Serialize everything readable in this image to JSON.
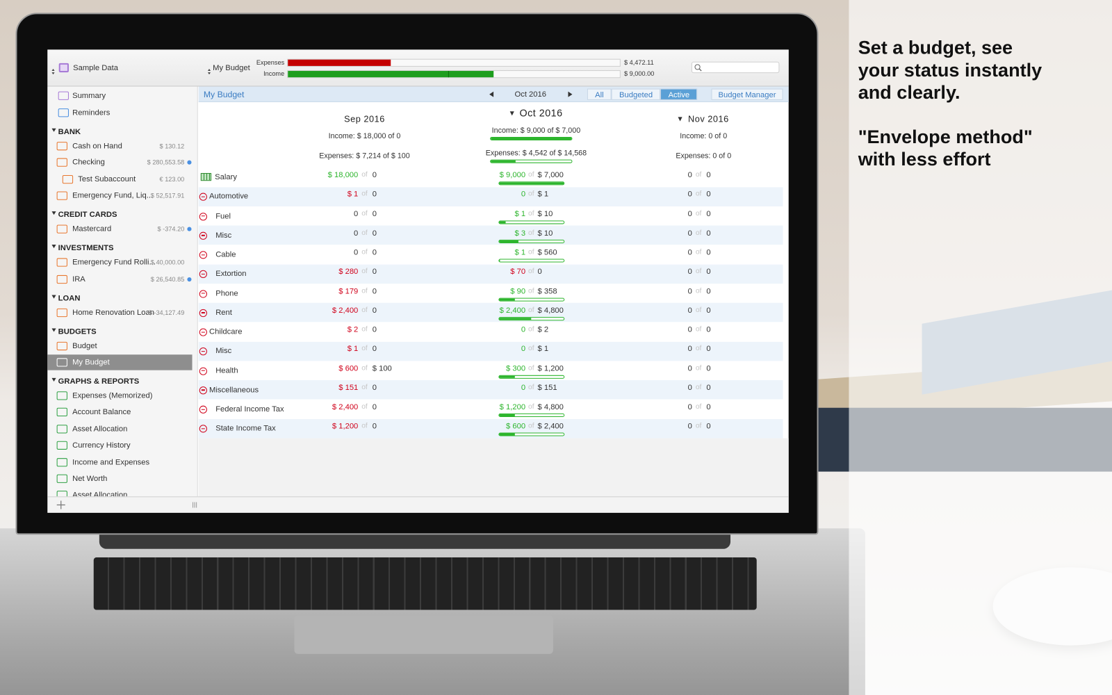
{
  "marketing": {
    "headline": [
      "Set a budget, see",
      "your status instantly",
      "and clearly."
    ],
    "subhead": [
      "\"Envelope method\"",
      "with less effort"
    ]
  },
  "toolbar": {
    "file": "Sample Data",
    "budget_selector": "My Budget",
    "expenses_label": "Expenses",
    "expenses_amount": "$ 4,472.11",
    "expenses_bar": 0.31,
    "income_label": "Income",
    "income_amount": "$ 9,000.00",
    "income_bar": 0.62
  },
  "sidebar": {
    "top": [
      "Summary",
      "Reminders"
    ],
    "sections": [
      {
        "title": "BANK",
        "items": [
          {
            "name": "Cash on Hand",
            "balance": "$ 130.12"
          },
          {
            "name": "Checking",
            "balance": "$ 280,553.58",
            "dot": true
          },
          {
            "name": "Test Subaccount",
            "balance": "€ 123.00",
            "indent": true
          },
          {
            "name": "Emergency Fund, Liq...",
            "balance": "$ 52,517.91"
          }
        ]
      },
      {
        "title": "CREDIT CARDS",
        "items": [
          {
            "name": "Mastercard",
            "balance": "$ -374.20",
            "dot": true
          }
        ]
      },
      {
        "title": "INVESTMENTS",
        "items": [
          {
            "name": "Emergency Fund Rolli...",
            "balance": "$ 40,000.00"
          },
          {
            "name": "IRA",
            "balance": "$ 26,540.85",
            "dot": true
          }
        ]
      },
      {
        "title": "LOAN",
        "items": [
          {
            "name": "Home Renovation Loan",
            "balance": "$ -34,127.49"
          }
        ]
      },
      {
        "title": "BUDGETS",
        "items": [
          {
            "name": "Budget"
          },
          {
            "name": "My Budget",
            "selected": true
          }
        ]
      },
      {
        "title": "GRAPHS & REPORTS",
        "items": [
          {
            "name": "Expenses (Memorized)"
          },
          {
            "name": "Account Balance"
          },
          {
            "name": "Asset Allocation"
          },
          {
            "name": "Currency History"
          },
          {
            "name": "Income and Expenses"
          },
          {
            "name": "Net Worth"
          },
          {
            "name": "Asset Allocation"
          }
        ]
      }
    ]
  },
  "budget": {
    "title": "My Budget",
    "period": "Oct 2016",
    "filters": [
      {
        "label": "All"
      },
      {
        "label": "Budgeted"
      },
      {
        "label": "Active",
        "selected": true
      }
    ],
    "manager": "Budget Manager",
    "of_label": "of",
    "months": [
      {
        "name": "Sep 2016",
        "income": "Income: $ 18,000 of 0",
        "expenses": "Expenses: $ 7,214 of $ 100"
      },
      {
        "name": "Oct 2016",
        "income": "Income: $ 9,000 of $ 7,000",
        "expenses": "Expenses: $ 4,542 of $ 14,568",
        "selected": true,
        "disclosure": true,
        "income_progress": 1.0,
        "expenses_progress": 0.31
      },
      {
        "name": "Nov 2016",
        "income": "Income: 0 of 0",
        "expenses": "Expenses: 0 of 0",
        "disclosure": true
      }
    ],
    "rows": [
      {
        "category": "Salary",
        "income": true,
        "cells": [
          {
            "actual": "$ 18,000",
            "budget": "0",
            "color": "#2db52d"
          },
          {
            "actual": "$ 9,000",
            "budget": "$ 7,000",
            "color": "#2db52d",
            "progress": 1.0
          },
          {
            "actual": "0",
            "budget": "0",
            "color": "#333333"
          }
        ]
      },
      {
        "category": "Automotive",
        "group": true,
        "cells": [
          {
            "actual": "$ 1",
            "budget": "0",
            "color": "#d0021b"
          },
          {
            "actual": "0",
            "budget": "$ 1",
            "color": "#2db52d"
          },
          {
            "actual": "0",
            "budget": "0",
            "color": "#333333"
          }
        ]
      },
      {
        "category": "Fuel",
        "cells": [
          {
            "actual": "0",
            "budget": "0",
            "color": "#333333"
          },
          {
            "actual": "$ 1",
            "budget": "$ 10",
            "color": "#2db52d",
            "progress": 0.1
          },
          {
            "actual": "0",
            "budget": "0",
            "color": "#333333"
          }
        ]
      },
      {
        "category": "Misc",
        "cells": [
          {
            "actual": "0",
            "budget": "0",
            "color": "#333333"
          },
          {
            "actual": "$ 3",
            "budget": "$ 10",
            "color": "#2db52d",
            "progress": 0.3
          },
          {
            "actual": "0",
            "budget": "0",
            "color": "#333333"
          }
        ]
      },
      {
        "category": "Cable",
        "cells": [
          {
            "actual": "0",
            "budget": "0",
            "color": "#333333"
          },
          {
            "actual": "$ 1",
            "budget": "$ 560",
            "color": "#2db52d",
            "progress": 0.02
          },
          {
            "actual": "0",
            "budget": "0",
            "color": "#333333"
          }
        ]
      },
      {
        "category": "Extortion",
        "cells": [
          {
            "actual": "$ 280",
            "budget": "0",
            "color": "#d0021b"
          },
          {
            "actual": "$ 70",
            "budget": "0",
            "color": "#d0021b"
          },
          {
            "actual": "0",
            "budget": "0",
            "color": "#333333"
          }
        ]
      },
      {
        "category": "Phone",
        "cells": [
          {
            "actual": "$ 179",
            "budget": "0",
            "color": "#d0021b"
          },
          {
            "actual": "$ 90",
            "budget": "$ 358",
            "color": "#2db52d",
            "progress": 0.25
          },
          {
            "actual": "0",
            "budget": "0",
            "color": "#333333"
          }
        ]
      },
      {
        "category": "Rent",
        "cells": [
          {
            "actual": "$ 2,400",
            "budget": "0",
            "color": "#d0021b"
          },
          {
            "actual": "$ 2,400",
            "budget": "$ 4,800",
            "color": "#2db52d",
            "progress": 0.5
          },
          {
            "actual": "0",
            "budget": "0",
            "color": "#333333"
          }
        ]
      },
      {
        "category": "Childcare",
        "group": true,
        "cells": [
          {
            "actual": "$ 2",
            "budget": "0",
            "color": "#d0021b"
          },
          {
            "actual": "0",
            "budget": "$ 2",
            "color": "#2db52d"
          },
          {
            "actual": "0",
            "budget": "0",
            "color": "#333333"
          }
        ]
      },
      {
        "category": "Misc",
        "cells": [
          {
            "actual": "$ 1",
            "budget": "0",
            "color": "#d0021b"
          },
          {
            "actual": "0",
            "budget": "$ 1",
            "color": "#2db52d"
          },
          {
            "actual": "0",
            "budget": "0",
            "color": "#333333"
          }
        ]
      },
      {
        "category": "Health",
        "cells": [
          {
            "actual": "$ 600",
            "budget": "$ 100",
            "color": "#d0021b"
          },
          {
            "actual": "$ 300",
            "budget": "$ 1,200",
            "color": "#2db52d",
            "progress": 0.25
          },
          {
            "actual": "0",
            "budget": "0",
            "color": "#333333"
          }
        ]
      },
      {
        "category": "Miscellaneous",
        "group": true,
        "cells": [
          {
            "actual": "$ 151",
            "budget": "0",
            "color": "#d0021b"
          },
          {
            "actual": "0",
            "budget": "$ 151",
            "color": "#2db52d"
          },
          {
            "actual": "0",
            "budget": "0",
            "color": "#333333"
          }
        ]
      },
      {
        "category": "Federal Income Tax",
        "cells": [
          {
            "actual": "$ 2,400",
            "budget": "0",
            "color": "#d0021b"
          },
          {
            "actual": "$ 1,200",
            "budget": "$ 4,800",
            "color": "#2db52d",
            "progress": 0.25
          },
          {
            "actual": "0",
            "budget": "0",
            "color": "#333333"
          }
        ]
      },
      {
        "category": "State Income Tax",
        "cells": [
          {
            "actual": "$ 1,200",
            "budget": "0",
            "color": "#d0021b"
          },
          {
            "actual": "$ 600",
            "budget": "$ 2,400",
            "color": "#2db52d",
            "progress": 0.25
          },
          {
            "actual": "0",
            "budget": "0",
            "color": "#333333"
          }
        ]
      }
    ]
  }
}
